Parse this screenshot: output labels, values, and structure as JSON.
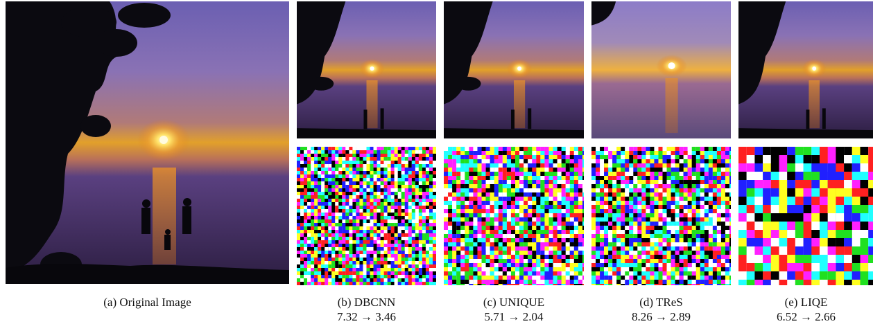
{
  "figure": {
    "panels": [
      {
        "id": "a",
        "caption": "(a) Original Image",
        "image_desc": "sunset over sea with silhouette of family and tree leaves"
      },
      {
        "id": "b",
        "caption": "(b) DBCNN",
        "score_before": "7.32",
        "score_after": "3.46",
        "arrow": "→",
        "score_line": "7.32 → 3.46",
        "top_image": "attacked sunset image",
        "bottom_image": "perturbation pattern of colored squares"
      },
      {
        "id": "c",
        "caption": "(c) UNIQUE",
        "score_before": "5.71",
        "score_after": "2.04",
        "arrow": "→",
        "score_line": "5.71 → 2.04",
        "top_image": "attacked sunset image",
        "bottom_image": "perturbation pattern of colored squares"
      },
      {
        "id": "d",
        "caption": "(d) TReS",
        "score_before": "8.26",
        "score_after": "2.89",
        "arrow": "→",
        "score_line": "8.26 → 2.89",
        "top_image": "attacked sunset image",
        "bottom_image": "perturbation pattern of colored squares"
      },
      {
        "id": "e",
        "caption": "(e) LIQE",
        "score_before": "6.52",
        "score_after": "2.66",
        "arrow": "→",
        "score_line": "6.52 → 2.66",
        "top_image": "attacked sunset image",
        "bottom_image": "perturbation pattern of colored squares"
      }
    ],
    "colors": {
      "sky_top": "#6e62b0",
      "sky_mid": "#8e6aa0",
      "horizon": "#e09a2a",
      "sea": "#3a2a55",
      "silhouette": "#0b0a10",
      "noise_palette": [
        "#ff2020",
        "#20e020",
        "#2020ff",
        "#ffff20",
        "#20ffff",
        "#ff20ff",
        "#ffffff",
        "#000000"
      ]
    }
  }
}
